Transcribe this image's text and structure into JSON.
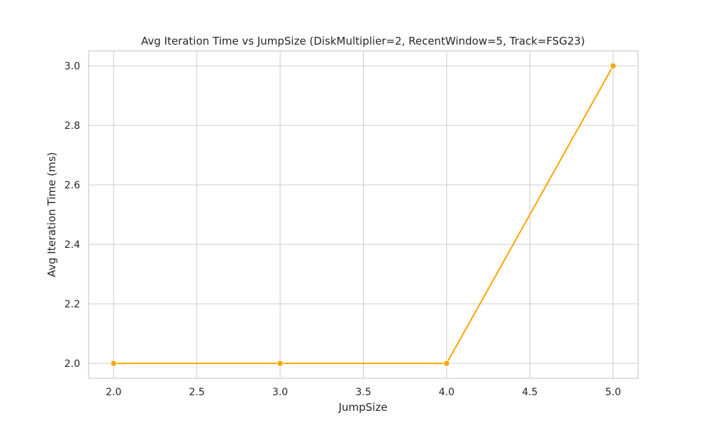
{
  "chart_data": {
    "type": "line",
    "title": "Avg Iteration Time vs JumpSize (DiskMultiplier=2, RecentWindow=5, Track=FSG23)",
    "xlabel": "JumpSize",
    "ylabel": "Avg Iteration Time (ms)",
    "x": [
      2.0,
      3.0,
      4.0,
      5.0
    ],
    "series": [
      {
        "values": [
          2.0,
          2.0,
          2.0,
          3.0
        ],
        "color": "#FFA500",
        "marker": "circle"
      }
    ],
    "xlim": [
      1.85,
      5.15
    ],
    "ylim": [
      1.95,
      3.05
    ],
    "xticks": [
      "2.0",
      "2.5",
      "3.0",
      "3.5",
      "4.0",
      "4.5",
      "5.0"
    ],
    "yticks": [
      "2.0",
      "2.2",
      "2.4",
      "2.6",
      "2.8",
      "3.0"
    ],
    "grid": true,
    "style": "whitegrid"
  }
}
